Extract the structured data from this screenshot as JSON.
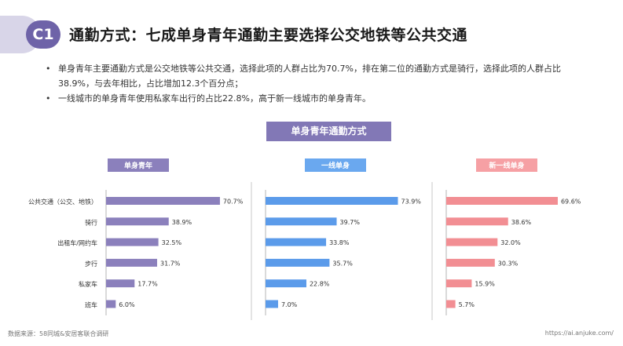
{
  "header": {
    "badge": "C1",
    "title": "通勤方式：七成单身青年通勤主要选择公交地铁等公共交通"
  },
  "bullets": [
    "单身青年主要通勤方式是公交地铁等公共交通，选择此项的人群占比为70.7%，排在第二位的通勤方式是骑行，选择此项的人群占比38.9%，与去年相比，占比增加12.3个百分点；",
    "一线城市的单身青年使用私家车出行的占比22.8%，高于新一线城市的单身青年。"
  ],
  "footer": {
    "source": "数据来源：58同城&安居客联合调研",
    "url": "https://ai.anjuke.com/"
  },
  "colors": {
    "accent": "#6e63a8",
    "series": [
      "#8b80bc",
      "#5b9bea",
      "#f28e93"
    ],
    "label_bg": [
      "#8b80bc",
      "#6aa8ef",
      "#f6a0a4"
    ]
  },
  "chart_data": {
    "type": "bar",
    "orientation": "horizontal",
    "title": "单身青年通勤方式",
    "categories": [
      "公共交通（公交、地铁）",
      "骑行",
      "出租车/网约车",
      "步行",
      "私家车",
      "班车"
    ],
    "series": [
      {
        "name": "单身青年",
        "values": [
          70.7,
          38.9,
          32.5,
          31.7,
          17.7,
          6.0
        ],
        "labels": [
          "70.7%",
          "38.9%",
          "32.5%",
          "31.7%",
          "17.7%",
          "6.0%"
        ]
      },
      {
        "name": "一线单身",
        "values": [
          73.9,
          39.7,
          33.8,
          35.7,
          22.8,
          7.0
        ],
        "labels": [
          "73.9%",
          "39.7%",
          "33.8%",
          "35.7%",
          "22.8%",
          "7.0%"
        ]
      },
      {
        "name": "新一线单身",
        "values": [
          69.6,
          38.6,
          32.0,
          30.3,
          15.9,
          5.7
        ],
        "labels": [
          "69.6%",
          "38.6%",
          "32.0%",
          "30.3%",
          "15.9%",
          "5.7%"
        ]
      }
    ],
    "xlim": [
      0,
      100
    ]
  }
}
